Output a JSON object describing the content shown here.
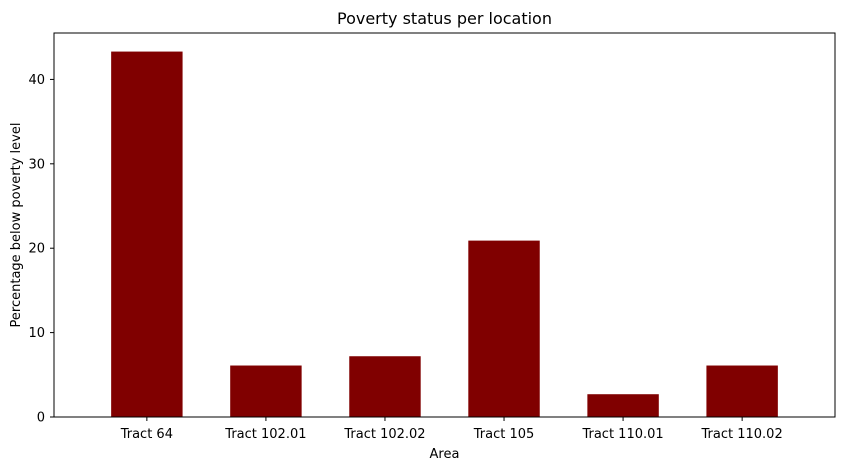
{
  "chart_data": {
    "type": "bar",
    "title": "Poverty status per location",
    "xlabel": "Area",
    "ylabel": "Percentage below poverty level",
    "categories": [
      "Tract 64",
      "Tract 102.01",
      "Tract 102.02",
      "Tract 105",
      "Tract 110.01",
      "Tract 110.02"
    ],
    "values": [
      43.3,
      6.1,
      7.2,
      20.9,
      2.7,
      6.1
    ],
    "ylim": [
      0,
      45.5
    ],
    "yticks": [
      0,
      10,
      20,
      30,
      40
    ],
    "bar_color": "#800000",
    "grid": false,
    "legend": "none"
  }
}
